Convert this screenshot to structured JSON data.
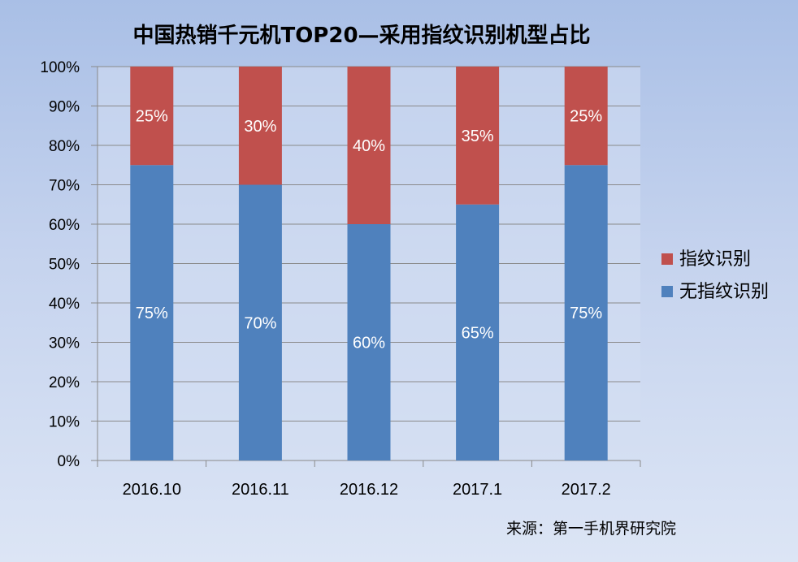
{
  "chart_data": {
    "type": "bar",
    "stacked": true,
    "title": "中国热销千元机TOP20—采用指纹识别机型占比",
    "categories": [
      "2016.10",
      "2016.11",
      "2016.12",
      "2017.1",
      "2017.2"
    ],
    "series": [
      {
        "name": "无指纹识别",
        "values": [
          75,
          70,
          60,
          65,
          75
        ],
        "labels": [
          "75%",
          "70%",
          "60%",
          "65%",
          "75%"
        ],
        "color": "#4f81bd"
      },
      {
        "name": "指纹识别",
        "values": [
          25,
          30,
          40,
          35,
          25
        ],
        "labels": [
          "25%",
          "30%",
          "40%",
          "35%",
          "25%"
        ],
        "color": "#c0504d"
      }
    ],
    "y_ticks": [
      "0%",
      "10%",
      "20%",
      "30%",
      "40%",
      "50%",
      "60%",
      "70%",
      "80%",
      "90%",
      "100%"
    ],
    "ylim": [
      0,
      100
    ],
    "grid": true,
    "legend": {
      "position": "right",
      "entries": [
        "指纹识别",
        "无指纹识别"
      ]
    }
  },
  "source_text": "来源：第一手机界研究院"
}
